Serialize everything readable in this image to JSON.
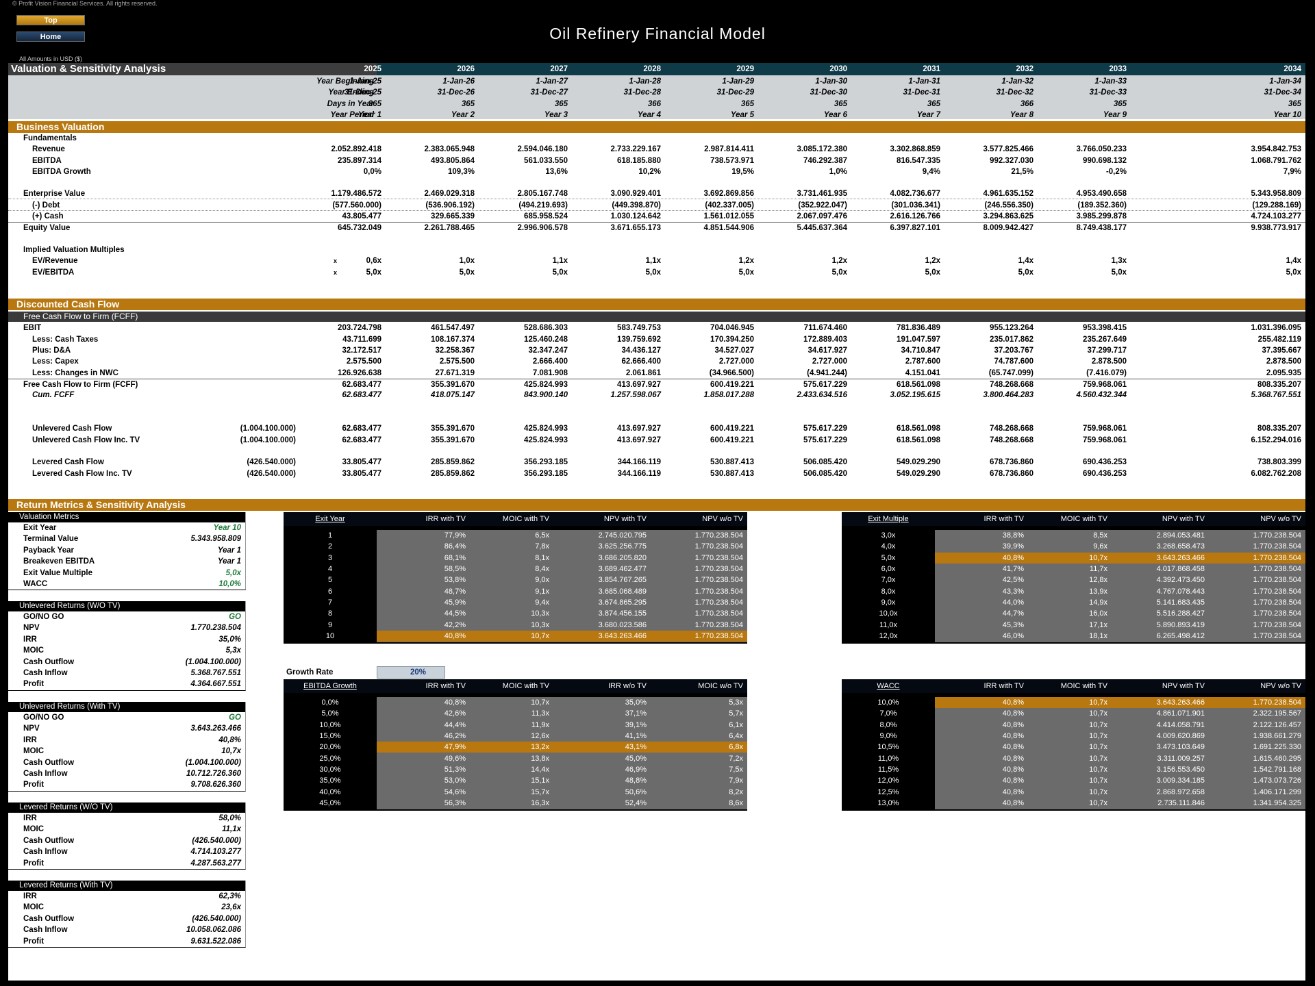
{
  "copyright": "© Profit Vision Financial Services. All rights reserved.",
  "nav": {
    "top": "Top",
    "home": "Home"
  },
  "title": "Oil Refinery Financial Model",
  "amounts": "All Amounts in  USD ($)",
  "header": {
    "section": "Valuation & Sensitivity Analysis",
    "years": [
      "2025",
      "2026",
      "2027",
      "2028",
      "2029",
      "2030",
      "2031",
      "2032",
      "2033",
      "2034"
    ],
    "year_beginning_label": "Year Beginning",
    "year_beginning": [
      "1-Jan-25",
      "1-Jan-26",
      "1-Jan-27",
      "1-Jan-28",
      "1-Jan-29",
      "1-Jan-30",
      "1-Jan-31",
      "1-Jan-32",
      "1-Jan-33",
      "1-Jan-34"
    ],
    "year_ending_label": "Year Ending",
    "year_ending": [
      "31-Dec-25",
      "31-Dec-26",
      "31-Dec-27",
      "31-Dec-28",
      "31-Dec-29",
      "31-Dec-30",
      "31-Dec-31",
      "31-Dec-32",
      "31-Dec-33",
      "31-Dec-34"
    ],
    "days_label": "Days in Year",
    "days": [
      "365",
      "365",
      "365",
      "366",
      "365",
      "365",
      "365",
      "366",
      "365",
      "365"
    ],
    "period_label": "Year Period",
    "period": [
      "Year 1",
      "Year 2",
      "Year 3",
      "Year 4",
      "Year 5",
      "Year 6",
      "Year 7",
      "Year 8",
      "Year 9",
      "Year 10"
    ]
  },
  "bv": {
    "title": "Business Valuation",
    "fundamentals": "Fundamentals",
    "revenue_label": "Revenue",
    "revenue": [
      "2.052.892.418",
      "2.383.065.948",
      "2.594.046.180",
      "2.733.229.167",
      "2.987.814.411",
      "3.085.172.380",
      "3.302.868.859",
      "3.577.825.466",
      "3.766.050.233",
      "3.954.842.753"
    ],
    "ebitda_label": "EBITDA",
    "ebitda": [
      "235.897.314",
      "493.805.864",
      "561.033.550",
      "618.185.880",
      "738.573.971",
      "746.292.387",
      "816.547.335",
      "992.327.030",
      "990.698.132",
      "1.068.791.762"
    ],
    "growth_label": "EBITDA Growth",
    "growth": [
      "0,0%",
      "109,3%",
      "13,6%",
      "10,2%",
      "19,5%",
      "1,0%",
      "9,4%",
      "21,5%",
      "-0,2%",
      "7,9%"
    ],
    "ev_label": "Enterprise Value",
    "ev": [
      "1.179.486.572",
      "2.469.029.318",
      "2.805.167.748",
      "3.090.929.401",
      "3.692.869.856",
      "3.731.461.935",
      "4.082.736.677",
      "4.961.635.152",
      "4.953.490.658",
      "5.343.958.809"
    ],
    "debt_label": "(-) Debt",
    "debt": [
      "(577.560.000)",
      "(536.906.192)",
      "(494.219.693)",
      "(449.398.870)",
      "(402.337.005)",
      "(352.922.047)",
      "(301.036.341)",
      "(246.556.350)",
      "(189.352.360)",
      "(129.288.169)"
    ],
    "cash_label": "(+) Cash",
    "cash": [
      "43.805.477",
      "329.665.339",
      "685.958.524",
      "1.030.124.642",
      "1.561.012.055",
      "2.067.097.476",
      "2.616.126.766",
      "3.294.863.625",
      "3.985.299.878",
      "4.724.103.277"
    ],
    "equity_label": "Equity Value",
    "equity": [
      "645.732.049",
      "2.261.788.465",
      "2.996.906.578",
      "3.671.655.173",
      "4.851.544.906",
      "5.445.637.364",
      "6.397.827.101",
      "8.009.942.427",
      "8.749.438.177",
      "9.938.773.917"
    ],
    "multiples_label": "Implied Valuation Multiples",
    "evrev_label": "EV/Revenue",
    "evrev": [
      "0,6x",
      "1,0x",
      "1,1x",
      "1,1x",
      "1,2x",
      "1,2x",
      "1,2x",
      "1,4x",
      "1,3x",
      "1,4x"
    ],
    "evebitda_label": "EV/EBITDA",
    "evebitda": [
      "5,0x",
      "5,0x",
      "5,0x",
      "5,0x",
      "5,0x",
      "5,0x",
      "5,0x",
      "5,0x",
      "5,0x",
      "5,0x"
    ],
    "x_mark": "x"
  },
  "dcf": {
    "title": "Discounted Cash Flow",
    "sub": "Free Cash Flow to Firm (FCFF)",
    "ebit_label": "EBIT",
    "ebit": [
      "203.724.798",
      "461.547.497",
      "528.686.303",
      "583.749.753",
      "704.046.945",
      "711.674.460",
      "781.836.489",
      "955.123.264",
      "953.398.415",
      "1.031.396.095"
    ],
    "tax_label": "Less: Cash Taxes",
    "tax": [
      "43.711.699",
      "108.167.374",
      "125.460.248",
      "139.759.692",
      "170.394.250",
      "172.889.403",
      "191.047.597",
      "235.017.862",
      "235.267.649",
      "255.482.119"
    ],
    "da_label": "Plus: D&A",
    "da": [
      "32.172.517",
      "32.258.367",
      "32.347.247",
      "34.436.127",
      "34.527.027",
      "34.617.927",
      "34.710.847",
      "37.203.767",
      "37.299.717",
      "37.395.667"
    ],
    "capex_label": "Less: Capex",
    "capex": [
      "2.575.500",
      "2.575.500",
      "2.666.400",
      "62.666.400",
      "2.727.000",
      "2.727.000",
      "2.787.600",
      "74.787.600",
      "2.878.500",
      "2.878.500"
    ],
    "nwc_label": "Less: Changes in NWC",
    "nwc": [
      "126.926.638",
      "27.671.319",
      "7.081.908",
      "2.061.861",
      "(34.966.500)",
      "(4.941.244)",
      "4.151.041",
      "(65.747.099)",
      "(7.416.079)",
      "2.095.935"
    ],
    "fcff_label": "Free Cash Flow to Firm (FCFF)",
    "fcff": [
      "62.683.477",
      "355.391.670",
      "425.824.993",
      "413.697.927",
      "600.419.221",
      "575.617.229",
      "618.561.098",
      "748.268.668",
      "759.968.061",
      "808.335.207"
    ],
    "cum_label": "Cum. FCFF",
    "cum": [
      "62.683.477",
      "418.075.147",
      "843.900.140",
      "1.257.598.067",
      "1.858.017.288",
      "2.433.634.516",
      "3.052.195.615",
      "3.800.464.283",
      "4.560.432.344",
      "5.368.767.551"
    ],
    "ucf_label": "Unlevered Cash Flow",
    "ucf0": "(1.004.100.000)",
    "ucf": [
      "62.683.477",
      "355.391.670",
      "425.824.993",
      "413.697.927",
      "600.419.221",
      "575.617.229",
      "618.561.098",
      "748.268.668",
      "759.968.061",
      "808.335.207"
    ],
    "ucftv_label": "Unlevered Cash Flow Inc. TV",
    "ucftv0": "(1.004.100.000)",
    "ucftv": [
      "62.683.477",
      "355.391.670",
      "425.824.993",
      "413.697.927",
      "600.419.221",
      "575.617.229",
      "618.561.098",
      "748.268.668",
      "759.968.061",
      "6.152.294.016"
    ],
    "lcf_label": "Levered Cash Flow",
    "lcf0": "(426.540.000)",
    "lcf": [
      "33.805.477",
      "285.859.862",
      "356.293.185",
      "344.166.119",
      "530.887.413",
      "506.085.420",
      "549.029.290",
      "678.736.860",
      "690.436.253",
      "738.803.399"
    ],
    "lcftv_label": "Levered Cash Flow Inc. TV",
    "lcftv0": "(426.540.000)",
    "lcftv": [
      "33.805.477",
      "285.859.862",
      "356.293.185",
      "344.166.119",
      "530.887.413",
      "506.085.420",
      "549.029.290",
      "678.736.860",
      "690.436.253",
      "6.082.762.208"
    ]
  },
  "rm": {
    "title": "Return Metrics & Sensitivity Analysis",
    "boxes": [
      {
        "title": "Valuation Metrics",
        "rows": [
          [
            "Exit Year",
            "Year 10",
            "g"
          ],
          [
            "Terminal Value",
            "5.343.958.809",
            ""
          ],
          [
            "Payback Year",
            "Year 1",
            ""
          ],
          [
            "Breakeven EBITDA",
            "Year 1",
            ""
          ],
          [
            "Exit Value Multiple",
            "5,0x",
            "g"
          ],
          [
            "WACC",
            "10,0%",
            "g"
          ]
        ]
      },
      {
        "title": "Unlevered Returns (W/O TV)",
        "rows": [
          [
            "GO/NO GO",
            "GO",
            "g"
          ],
          [
            "NPV",
            "1.770.238.504",
            ""
          ],
          [
            "IRR",
            "35,0%",
            ""
          ],
          [
            "MOIC",
            "5,3x",
            ""
          ],
          [
            "Cash Outflow",
            "(1.004.100.000)",
            ""
          ],
          [
            "Cash Inflow",
            "5.368.767.551",
            ""
          ],
          [
            "Profit",
            "4.364.667.551",
            ""
          ]
        ]
      },
      {
        "title": "Unlevered Returns (With TV)",
        "rows": [
          [
            "GO/NO GO",
            "GO",
            "g"
          ],
          [
            "NPV",
            "3.643.263.466",
            ""
          ],
          [
            "IRR",
            "40,8%",
            ""
          ],
          [
            "MOIC",
            "10,7x",
            ""
          ],
          [
            "Cash Outflow",
            "(1.004.100.000)",
            ""
          ],
          [
            "Cash Inflow",
            "10.712.726.360",
            ""
          ],
          [
            "Profit",
            "9.708.626.360",
            ""
          ]
        ]
      },
      {
        "title": "Levered Returns (W/O TV)",
        "rows": [
          [
            "IRR",
            "58,0%",
            ""
          ],
          [
            "MOIC",
            "11,1x",
            ""
          ],
          [
            "Cash Outflow",
            "(426.540.000)",
            ""
          ],
          [
            "Cash Inflow",
            "4.714.103.277",
            ""
          ],
          [
            "Profit",
            "4.287.563.277",
            ""
          ]
        ]
      },
      {
        "title": "Levered Returns (With TV)",
        "rows": [
          [
            "IRR",
            "62,3%",
            ""
          ],
          [
            "MOIC",
            "23,6x",
            ""
          ],
          [
            "Cash Outflow",
            "(426.540.000)",
            ""
          ],
          [
            "Cash Inflow",
            "10.058.062.086",
            ""
          ],
          [
            "Profit",
            "9.631.522.086",
            ""
          ]
        ]
      }
    ],
    "growth_rate_label": "Growth Rate",
    "growth_rate": "20%",
    "tables": [
      {
        "id": "exit-year",
        "headers": [
          "Exit Year",
          "IRR with TV",
          "MOIC with TV",
          "NPV with TV",
          "NPV w/o TV"
        ],
        "hl": 9,
        "rows": [
          [
            "1",
            "77,9%",
            "6,5x",
            "2.745.020.795",
            "1.770.238.504"
          ],
          [
            "2",
            "86,4%",
            "7,8x",
            "3.625.256.775",
            "1.770.238.504"
          ],
          [
            "3",
            "68,1%",
            "8,1x",
            "3.686.205.820",
            "1.770.238.504"
          ],
          [
            "4",
            "58,5%",
            "8,4x",
            "3.689.462.477",
            "1.770.238.504"
          ],
          [
            "5",
            "53,8%",
            "9,0x",
            "3.854.767.265",
            "1.770.238.504"
          ],
          [
            "6",
            "48,7%",
            "9,1x",
            "3.685.068.489",
            "1.770.238.504"
          ],
          [
            "7",
            "45,9%",
            "9,4x",
            "3.674.865.295",
            "1.770.238.504"
          ],
          [
            "8",
            "44,5%",
            "10,3x",
            "3.874.456.155",
            "1.770.238.504"
          ],
          [
            "9",
            "42,2%",
            "10,3x",
            "3.680.023.586",
            "1.770.238.504"
          ],
          [
            "10",
            "40,8%",
            "10,7x",
            "3.643.263.466",
            "1.770.238.504"
          ]
        ]
      },
      {
        "id": "exit-multiple",
        "headers": [
          "Exit Multiple",
          "IRR with TV",
          "MOIC with TV",
          "NPV with TV",
          "NPV w/o TV"
        ],
        "hl": 2,
        "rows": [
          [
            "3,0x",
            "38,8%",
            "8,5x",
            "2.894.053.481",
            "1.770.238.504"
          ],
          [
            "4,0x",
            "39,9%",
            "9,6x",
            "3.268.658.473",
            "1.770.238.504"
          ],
          [
            "5,0x",
            "40,8%",
            "10,7x",
            "3.643.263.466",
            "1.770.238.504"
          ],
          [
            "6,0x",
            "41,7%",
            "11,7x",
            "4.017.868.458",
            "1.770.238.504"
          ],
          [
            "7,0x",
            "42,5%",
            "12,8x",
            "4.392.473.450",
            "1.770.238.504"
          ],
          [
            "8,0x",
            "43,3%",
            "13,9x",
            "4.767.078.443",
            "1.770.238.504"
          ],
          [
            "9,0x",
            "44,0%",
            "14,9x",
            "5.141.683.435",
            "1.770.238.504"
          ],
          [
            "10,0x",
            "44,7%",
            "16,0x",
            "5.516.288.427",
            "1.770.238.504"
          ],
          [
            "11,0x",
            "45,3%",
            "17,1x",
            "5.890.893.419",
            "1.770.238.504"
          ],
          [
            "12,0x",
            "46,0%",
            "18,1x",
            "6.265.498.412",
            "1.770.238.504"
          ]
        ]
      },
      {
        "id": "ebitda-growth",
        "headers": [
          "EBITDA Growth",
          "IRR with TV",
          "MOIC with TV",
          "IRR w/o TV",
          "MOIC w/o TV"
        ],
        "hl": 4,
        "rows": [
          [
            "0,0%",
            "40,8%",
            "10,7x",
            "35,0%",
            "5,3x"
          ],
          [
            "5,0%",
            "42,6%",
            "11,3x",
            "37,1%",
            "5,7x"
          ],
          [
            "10,0%",
            "44,4%",
            "11,9x",
            "39,1%",
            "6,1x"
          ],
          [
            "15,0%",
            "46,2%",
            "12,6x",
            "41,1%",
            "6,4x"
          ],
          [
            "20,0%",
            "47,9%",
            "13,2x",
            "43,1%",
            "6,8x"
          ],
          [
            "25,0%",
            "49,6%",
            "13,8x",
            "45,0%",
            "7,2x"
          ],
          [
            "30,0%",
            "51,3%",
            "14,4x",
            "46,9%",
            "7,5x"
          ],
          [
            "35,0%",
            "53,0%",
            "15,1x",
            "48,8%",
            "7,9x"
          ],
          [
            "40,0%",
            "54,6%",
            "15,7x",
            "50,6%",
            "8,2x"
          ],
          [
            "45,0%",
            "56,3%",
            "16,3x",
            "52,4%",
            "8,6x"
          ]
        ]
      },
      {
        "id": "wacc",
        "headers": [
          "WACC",
          "IRR with TV",
          "MOIC with TV",
          "NPV with TV",
          "NPV w/o TV"
        ],
        "hl": 0,
        "rows": [
          [
            "10,0%",
            "40,8%",
            "10,7x",
            "3.643.263.466",
            "1.770.238.504"
          ],
          [
            "7,0%",
            "40,8%",
            "10,7x",
            "4.861.071.901",
            "2.322.195.567"
          ],
          [
            "8,0%",
            "40,8%",
            "10,7x",
            "4.414.058.791",
            "2.122.126.457"
          ],
          [
            "9,0%",
            "40,8%",
            "10,7x",
            "4.009.620.869",
            "1.938.661.279"
          ],
          [
            "10,5%",
            "40,8%",
            "10,7x",
            "3.473.103.649",
            "1.691.225.330"
          ],
          [
            "11,0%",
            "40,8%",
            "10,7x",
            "3.311.009.257",
            "1.615.460.295"
          ],
          [
            "11,5%",
            "40,8%",
            "10,7x",
            "3.156.553.450",
            "1.542.791.168"
          ],
          [
            "12,0%",
            "40,8%",
            "10,7x",
            "3.009.334.185",
            "1.473.073.726"
          ],
          [
            "12,5%",
            "40,8%",
            "10,7x",
            "2.868.972.658",
            "1.406.171.299"
          ],
          [
            "13,0%",
            "40,8%",
            "10,7x",
            "2.735.111.846",
            "1.341.954.325"
          ]
        ]
      }
    ]
  }
}
